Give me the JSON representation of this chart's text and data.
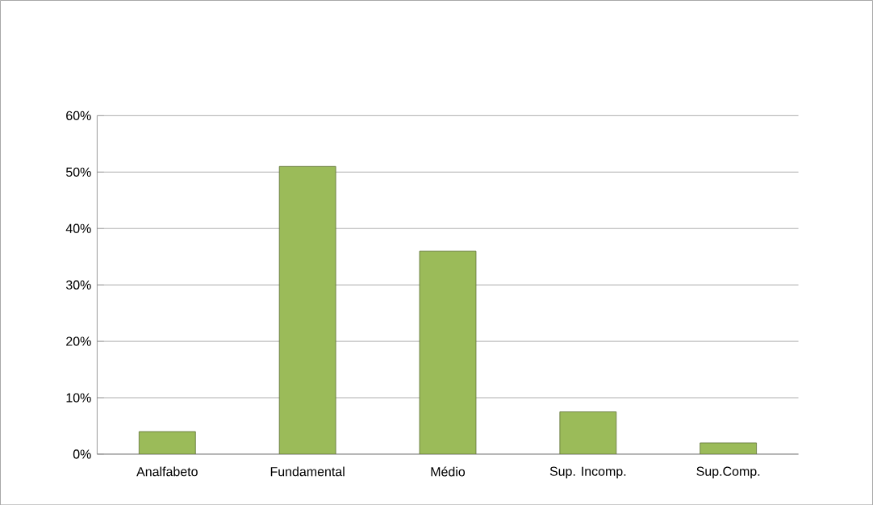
{
  "chart_data": {
    "type": "bar",
    "categories": [
      "Analfabeto",
      "Fundamental",
      "Médio",
      "Sup. Incomp.",
      "Sup.Comp."
    ],
    "values": [
      4,
      51,
      36,
      7.5,
      2
    ],
    "color": "#9bbb59",
    "ylim": [
      0,
      60
    ],
    "yticks": [
      {
        "value": 0,
        "label": "0%"
      },
      {
        "value": 10,
        "label": "10%"
      },
      {
        "value": 20,
        "label": "20%"
      },
      {
        "value": 30,
        "label": "30%"
      },
      {
        "value": 40,
        "label": "40%"
      },
      {
        "value": 50,
        "label": "50%"
      },
      {
        "value": 60,
        "label": "60%"
      }
    ],
    "grid": "y"
  }
}
